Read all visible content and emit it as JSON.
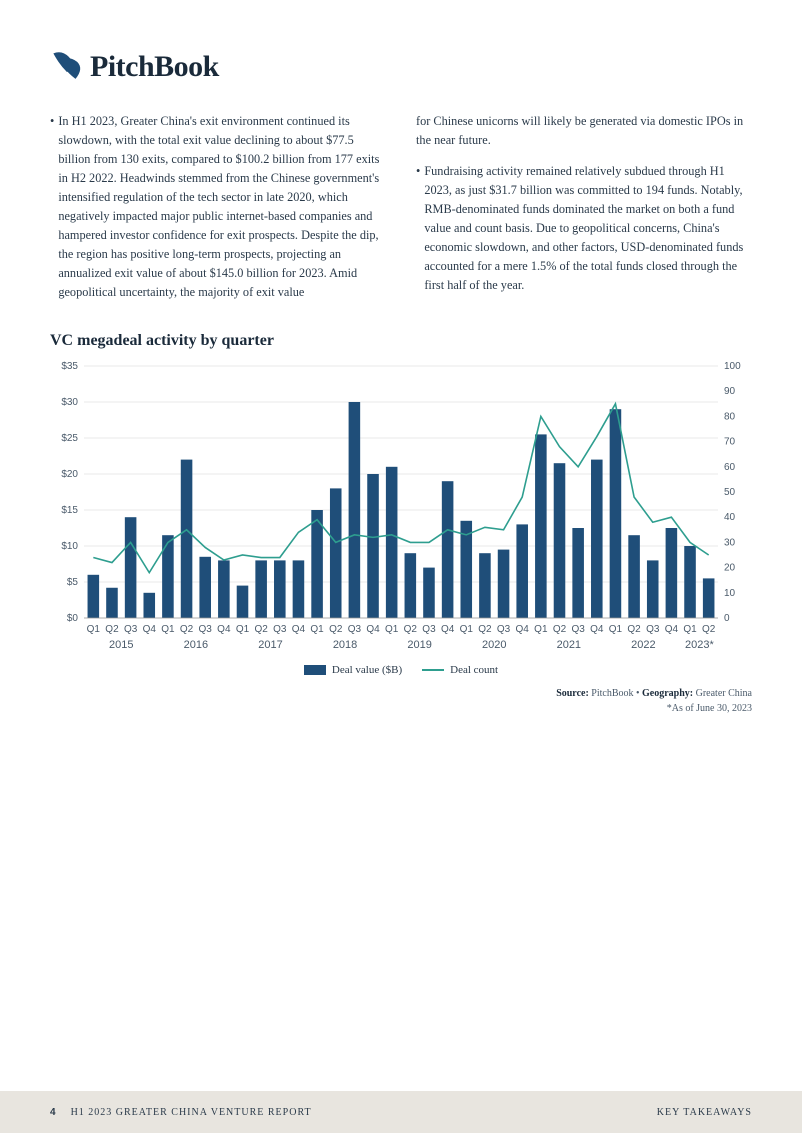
{
  "logo": {
    "text": "PitchBook"
  },
  "columns": {
    "left": {
      "bullet1": "In H1 2023, Greater China's exit environment continued its slowdown, with the total exit value declining to about $77.5 billion from 130 exits, compared to $100.2 billion from 177 exits in H2 2022. Headwinds stemmed from the Chinese government's intensified regulation of the tech sector in late 2020, which negatively impacted major public internet-based companies and hampered investor confidence for exit prospects. Despite the dip, the region has positive long-term prospects, projecting an annualized exit value of about $145.0 billion for 2023. Amid geopolitical uncertainty, the majority of exit value"
    },
    "right": {
      "cont": "for Chinese unicorns will likely be generated via domestic IPOs in the near future.",
      "bullet2": "Fundraising activity remained relatively subdued through H1 2023, as just $31.7 billion was committed to 194 funds. Notably, RMB-denominated funds dominated the market on both a fund value and count basis. Due to geopolitical concerns, China's economic slowdown, and other factors, USD-denominated funds accounted for a mere 1.5% of the total funds closed through the first half of the year."
    }
  },
  "chart": {
    "title": "VC megadeal activity by quarter",
    "type": "bar+line",
    "bar_color": "#1f4e79",
    "line_color": "#2e9e8f",
    "grid_color": "#d5d5d5",
    "background_color": "#ffffff",
    "text_color": "#4a5a6a",
    "left_axis": {
      "min": 0,
      "max": 35,
      "step": 5,
      "prefix": "$"
    },
    "right_axis": {
      "min": 0,
      "max": 100,
      "step": 10
    },
    "legend": {
      "bar": "Deal value ($B)",
      "line": "Deal count"
    },
    "years": [
      "2015",
      "2016",
      "2017",
      "2018",
      "2019",
      "2020",
      "2021",
      "2022",
      "2023*"
    ],
    "year_spans": [
      4,
      4,
      4,
      4,
      4,
      4,
      4,
      4,
      2
    ],
    "quarters": [
      "Q1",
      "Q2",
      "Q3",
      "Q4",
      "Q1",
      "Q2",
      "Q3",
      "Q4",
      "Q1",
      "Q2",
      "Q3",
      "Q4",
      "Q1",
      "Q2",
      "Q3",
      "Q4",
      "Q1",
      "Q2",
      "Q3",
      "Q4",
      "Q1",
      "Q2",
      "Q3",
      "Q4",
      "Q1",
      "Q2",
      "Q3",
      "Q4",
      "Q1",
      "Q2",
      "Q3",
      "Q4",
      "Q1",
      "Q2"
    ],
    "bars": [
      6,
      4.2,
      14,
      3.5,
      11.5,
      22,
      8.5,
      8,
      4.5,
      8,
      8,
      8,
      15,
      18,
      30,
      20,
      21,
      9,
      7,
      19,
      13.5,
      9,
      9.5,
      13,
      25.5,
      21.5,
      12.5,
      22,
      29,
      11.5,
      8,
      12.5,
      10,
      5.5
    ],
    "line_counts": [
      24,
      22,
      30,
      18,
      30,
      35,
      28,
      23,
      25,
      24,
      24,
      34,
      39,
      30,
      33,
      32,
      33,
      30,
      30,
      35,
      33,
      36,
      35,
      48,
      80,
      68,
      60,
      72,
      85,
      48,
      38,
      40,
      30,
      25
    ]
  },
  "source": {
    "line1_label1": "Source:",
    "line1_val1": " PitchBook  •  ",
    "line1_label2": "Geography:",
    "line1_val2": " Greater China",
    "line2": "*As of June 30, 2023"
  },
  "footer": {
    "page": "4",
    "title": "H1 2023 GREATER CHINA VENTURE REPORT",
    "section": "KEY TAKEAWAYS"
  }
}
